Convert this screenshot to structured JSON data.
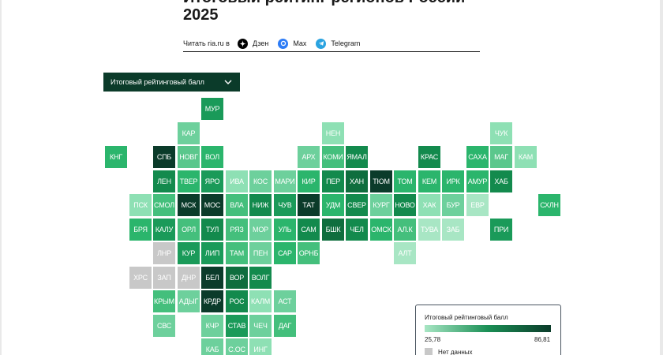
{
  "page": {
    "title_line1": "Итоговый рейтинг регионов России",
    "title_line2": "2025"
  },
  "share": {
    "label": "Читать ria.ru в",
    "items": [
      {
        "name": "dzen",
        "label": "Дзен",
        "color": "#000000"
      },
      {
        "name": "max",
        "label": "Max",
        "color": "#2d7cf6"
      },
      {
        "name": "telegram",
        "label": "Telegram",
        "color": "#2aa3e0"
      }
    ]
  },
  "selector": {
    "label": "Итоговый рейтинговый балл"
  },
  "legend": {
    "title": "Итоговый рейтинговый балл",
    "min": "25,78",
    "max": "86,81",
    "no_data": "Нет данных",
    "colors": [
      "#a8e6c4",
      "#1a8f55",
      "#0b3b2a"
    ],
    "no_data_color": "#c8c8c8"
  },
  "regions": [
    {
      "code": "МУР",
      "col": 4,
      "row": 0,
      "color": "#1a9a59"
    },
    {
      "code": "КАР",
      "col": 3,
      "row": 1,
      "color": "#6dd09c"
    },
    {
      "code": "НЕН",
      "col": 9,
      "row": 1,
      "color": "#8ee0b4"
    },
    {
      "code": "ЧУК",
      "col": 16,
      "row": 1,
      "color": "#8ee0b4"
    },
    {
      "code": "КНГ",
      "col": 0,
      "row": 2,
      "color": "#2bb56c"
    },
    {
      "code": "СПБ",
      "col": 2,
      "row": 2,
      "color": "#0b3b2a"
    },
    {
      "code": "НОВГ",
      "col": 3,
      "row": 2,
      "color": "#5ac78c"
    },
    {
      "code": "ВОЛ",
      "col": 4,
      "row": 2,
      "color": "#2bb56c"
    },
    {
      "code": "АРХ",
      "col": 8,
      "row": 2,
      "color": "#6dd09c"
    },
    {
      "code": "КОМИ",
      "col": 9,
      "row": 2,
      "color": "#44bf7c"
    },
    {
      "code": "ЯМАЛ",
      "col": 10,
      "row": 2,
      "color": "#138a4d"
    },
    {
      "code": "КРАС",
      "col": 13,
      "row": 2,
      "color": "#138a4d"
    },
    {
      "code": "САХА",
      "col": 15,
      "row": 2,
      "color": "#2bb56c"
    },
    {
      "code": "МАГ",
      "col": 16,
      "row": 2,
      "color": "#5ac78c"
    },
    {
      "code": "КАМ",
      "col": 17,
      "row": 2,
      "color": "#8ee0b4"
    },
    {
      "code": "ЛЕН",
      "col": 2,
      "row": 3,
      "color": "#138a4d"
    },
    {
      "code": "ТВЕР",
      "col": 3,
      "row": 3,
      "color": "#2bb56c"
    },
    {
      "code": "ЯРО",
      "col": 4,
      "row": 3,
      "color": "#1a9a59"
    },
    {
      "code": "ИВА",
      "col": 5,
      "row": 3,
      "color": "#8ee0b4"
    },
    {
      "code": "КОС",
      "col": 6,
      "row": 3,
      "color": "#6dd09c"
    },
    {
      "code": "МАРИ",
      "col": 7,
      "row": 3,
      "color": "#6dd09c"
    },
    {
      "code": "КИР",
      "col": 8,
      "row": 3,
      "color": "#2bb56c"
    },
    {
      "code": "ПЕР",
      "col": 9,
      "row": 3,
      "color": "#138a4d"
    },
    {
      "code": "ХАН",
      "col": 10,
      "row": 3,
      "color": "#0f6e3e"
    },
    {
      "code": "ТЮМ",
      "col": 11,
      "row": 3,
      "color": "#0b3b2a"
    },
    {
      "code": "ТОМ",
      "col": 12,
      "row": 3,
      "color": "#2bb56c"
    },
    {
      "code": "КЕМ",
      "col": 13,
      "row": 3,
      "color": "#2bb56c"
    },
    {
      "code": "ИРК",
      "col": 14,
      "row": 3,
      "color": "#2bb56c"
    },
    {
      "code": "АМУР",
      "col": 15,
      "row": 3,
      "color": "#2bb56c"
    },
    {
      "code": "ХАБ",
      "col": 16,
      "row": 3,
      "color": "#138a4d"
    },
    {
      "code": "ПСК",
      "col": 1,
      "row": 4,
      "color": "#8ee0b4"
    },
    {
      "code": "СМОЛ",
      "col": 2,
      "row": 4,
      "color": "#44bf7c"
    },
    {
      "code": "МСК",
      "col": 3,
      "row": 4,
      "color": "#0b3b2a"
    },
    {
      "code": "МОС",
      "col": 4,
      "row": 4,
      "color": "#0b3b2a"
    },
    {
      "code": "ВЛА",
      "col": 5,
      "row": 4,
      "color": "#44bf7c"
    },
    {
      "code": "НИЖ",
      "col": 6,
      "row": 4,
      "color": "#138a4d"
    },
    {
      "code": "ЧУВ",
      "col": 7,
      "row": 4,
      "color": "#1a9a59"
    },
    {
      "code": "ТАТ",
      "col": 8,
      "row": 4,
      "color": "#0b3b2a"
    },
    {
      "code": "УДМ",
      "col": 9,
      "row": 4,
      "color": "#2bb56c"
    },
    {
      "code": "СВЕР",
      "col": 10,
      "row": 4,
      "color": "#138a4d"
    },
    {
      "code": "КУРГ",
      "col": 11,
      "row": 4,
      "color": "#6dd09c"
    },
    {
      "code": "НОВО",
      "col": 12,
      "row": 4,
      "color": "#138a4d"
    },
    {
      "code": "ХАК",
      "col": 13,
      "row": 4,
      "color": "#8ee0b4"
    },
    {
      "code": "БУР",
      "col": 14,
      "row": 4,
      "color": "#6dd09c"
    },
    {
      "code": "ЕВР",
      "col": 15,
      "row": 4,
      "color": "#a8e6c4"
    },
    {
      "code": "СХЛН",
      "col": 18,
      "row": 4,
      "color": "#2bb56c"
    },
    {
      "code": "БРЯ",
      "col": 1,
      "row": 5,
      "color": "#2bb56c"
    },
    {
      "code": "КАЛУ",
      "col": 2,
      "row": 5,
      "color": "#1a9a59"
    },
    {
      "code": "ОРЛ",
      "col": 3,
      "row": 5,
      "color": "#44bf7c"
    },
    {
      "code": "ТУЛ",
      "col": 4,
      "row": 5,
      "color": "#138a4d"
    },
    {
      "code": "РЯЗ",
      "col": 5,
      "row": 5,
      "color": "#44bf7c"
    },
    {
      "code": "МОР",
      "col": 6,
      "row": 5,
      "color": "#6dd09c"
    },
    {
      "code": "УЛЬ",
      "col": 7,
      "row": 5,
      "color": "#2bb56c"
    },
    {
      "code": "САМ",
      "col": 8,
      "row": 5,
      "color": "#138a4d"
    },
    {
      "code": "БШК",
      "col": 9,
      "row": 5,
      "color": "#0f6e3e"
    },
    {
      "code": "ЧЕЛ",
      "col": 10,
      "row": 5,
      "color": "#138a4d"
    },
    {
      "code": "ОМСК",
      "col": 11,
      "row": 5,
      "color": "#2bb56c"
    },
    {
      "code": "АЛ.К",
      "col": 12,
      "row": 5,
      "color": "#44bf7c"
    },
    {
      "code": "ТУВА",
      "col": 13,
      "row": 5,
      "color": "#a8e6c4"
    },
    {
      "code": "ЗАБ",
      "col": 14,
      "row": 5,
      "color": "#a8e6c4"
    },
    {
      "code": "ПРИ",
      "col": 16,
      "row": 5,
      "color": "#1a9a59"
    },
    {
      "code": "ЛНР",
      "col": 2,
      "row": 6,
      "color": "#c8c8c8"
    },
    {
      "code": "КУР",
      "col": 3,
      "row": 6,
      "color": "#1a9a59"
    },
    {
      "code": "ЛИП",
      "col": 4,
      "row": 6,
      "color": "#1a9a59"
    },
    {
      "code": "ТАМ",
      "col": 5,
      "row": 6,
      "color": "#44bf7c"
    },
    {
      "code": "ПЕН",
      "col": 6,
      "row": 6,
      "color": "#6dd09c"
    },
    {
      "code": "САР",
      "col": 7,
      "row": 6,
      "color": "#2bb56c"
    },
    {
      "code": "ОРНБ",
      "col": 8,
      "row": 6,
      "color": "#44bf7c"
    },
    {
      "code": "АЛТ",
      "col": 12,
      "row": 6,
      "color": "#a8e6c4"
    },
    {
      "code": "ХРС",
      "col": 1,
      "row": 7,
      "color": "#c8c8c8"
    },
    {
      "code": "ЗАП",
      "col": 2,
      "row": 7,
      "color": "#c8c8c8"
    },
    {
      "code": "ДНР",
      "col": 3,
      "row": 7,
      "color": "#c8c8c8"
    },
    {
      "code": "БЕЛ",
      "col": 4,
      "row": 7,
      "color": "#0b3b2a"
    },
    {
      "code": "ВОР",
      "col": 5,
      "row": 7,
      "color": "#0f6e3e"
    },
    {
      "code": "ВОЛГ",
      "col": 6,
      "row": 7,
      "color": "#138a4d"
    },
    {
      "code": "КРЫМ",
      "col": 2,
      "row": 8,
      "color": "#44bf7c"
    },
    {
      "code": "АДЫГ",
      "col": 3,
      "row": 8,
      "color": "#6dd09c"
    },
    {
      "code": "КРДР",
      "col": 4,
      "row": 8,
      "color": "#0b3b2a"
    },
    {
      "code": "РОС",
      "col": 5,
      "row": 8,
      "color": "#138a4d"
    },
    {
      "code": "КАЛМ",
      "col": 6,
      "row": 8,
      "color": "#8ee0b4"
    },
    {
      "code": "АСТ",
      "col": 7,
      "row": 8,
      "color": "#6dd09c"
    },
    {
      "code": "СВС",
      "col": 2,
      "row": 9,
      "color": "#6dd09c"
    },
    {
      "code": "КЧР",
      "col": 4,
      "row": 9,
      "color": "#6dd09c"
    },
    {
      "code": "СТАВ",
      "col": 5,
      "row": 9,
      "color": "#1a9a59"
    },
    {
      "code": "ЧЕЧ",
      "col": 6,
      "row": 9,
      "color": "#6dd09c"
    },
    {
      "code": "ДАГ",
      "col": 7,
      "row": 9,
      "color": "#44bf7c"
    },
    {
      "code": "КАБ",
      "col": 4,
      "row": 10,
      "color": "#6dd09c"
    },
    {
      "code": "С.ОС",
      "col": 5,
      "row": 10,
      "color": "#6dd09c"
    },
    {
      "code": "ИНГ",
      "col": 6,
      "row": 10,
      "color": "#8ee0b4"
    }
  ]
}
